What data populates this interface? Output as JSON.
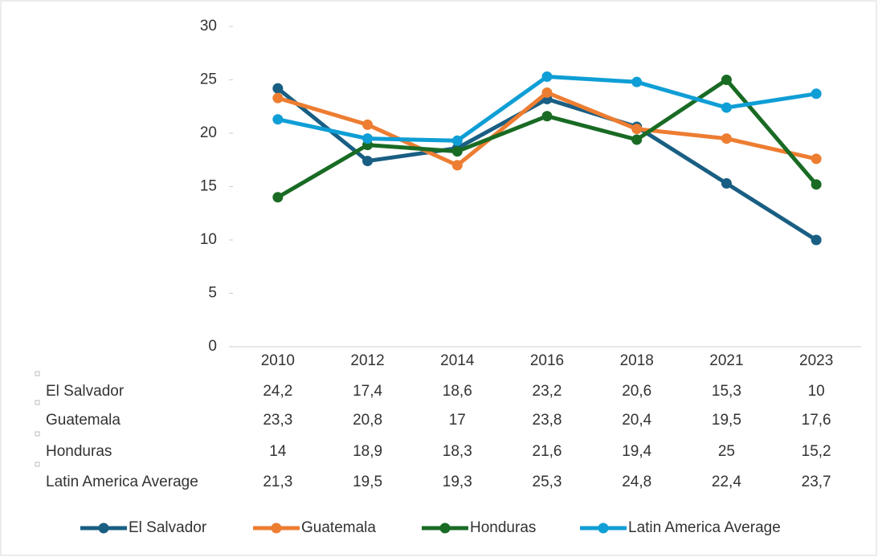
{
  "chart_data": {
    "type": "line",
    "categories": [
      "2010",
      "2012",
      "2014",
      "2016",
      "2018",
      "2021",
      "2023"
    ],
    "series": [
      {
        "name": "El Salvador",
        "color": "#195e83",
        "values": [
          24.2,
          17.4,
          18.6,
          23.2,
          20.6,
          15.3,
          10
        ],
        "value_labels": [
          "24,2",
          "17,4",
          "18,6",
          "23,2",
          "20,6",
          "15,3",
          "10"
        ]
      },
      {
        "name": "Guatemala",
        "color": "#ed7d31",
        "values": [
          23.3,
          20.8,
          17,
          23.8,
          20.4,
          19.5,
          17.6
        ],
        "value_labels": [
          "23,3",
          "20,8",
          "17",
          "23,8",
          "20,4",
          "19,5",
          "17,6"
        ]
      },
      {
        "name": "Honduras",
        "color": "#196b24",
        "values": [
          14,
          18.9,
          18.3,
          21.6,
          19.4,
          25,
          15.2
        ],
        "value_labels": [
          "14",
          "18,9",
          "18,3",
          "21,6",
          "19,4",
          "25",
          "15,2"
        ]
      },
      {
        "name": "Latin America Average",
        "color": "#0f9ed5",
        "values": [
          21.3,
          19.5,
          19.3,
          25.3,
          24.8,
          22.4,
          23.7
        ],
        "value_labels": [
          "21,3",
          "19,5",
          "19,3",
          "25,3",
          "24,8",
          "22,4",
          "23,7"
        ]
      }
    ],
    "ylim": [
      0,
      30
    ],
    "yticks": [
      0,
      5,
      10,
      15,
      20,
      25,
      30
    ],
    "grid": false,
    "legend": "bottom"
  }
}
